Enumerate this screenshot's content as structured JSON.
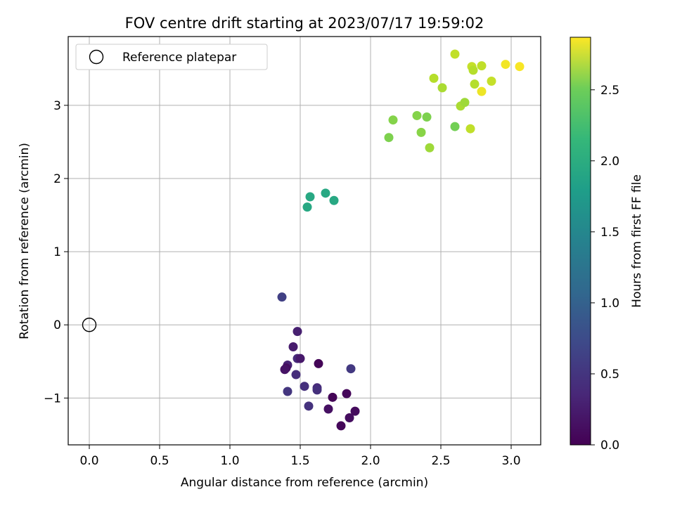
{
  "chart_data": {
    "type": "scatter",
    "title": "FOV centre drift starting at 2023/07/17 19:59:02",
    "xlabel": "Angular distance from reference (arcmin)",
    "ylabel": "Rotation from reference (arcmin)",
    "xlim": [
      -0.15,
      3.21
    ],
    "ylim": [
      -1.64,
      3.94
    ],
    "xticks": [
      0.0,
      0.5,
      1.0,
      1.5,
      2.0,
      2.5,
      3.0
    ],
    "xtick_labels": [
      "0.0",
      "0.5",
      "1.0",
      "1.5",
      "2.0",
      "2.5",
      "3.0"
    ],
    "yticks": [
      -1,
      0,
      1,
      2,
      3
    ],
    "ytick_labels": [
      "−1",
      "0",
      "1",
      "2",
      "3"
    ],
    "grid": true,
    "legend": {
      "placement": "top-left",
      "entries": [
        "Reference platepar"
      ]
    },
    "reference": {
      "x": 0.0,
      "y": 0.0,
      "label": "Reference platepar"
    },
    "colorbar": {
      "label": "Hours from first FF file",
      "colormap": "viridis",
      "range": [
        0.0,
        2.87
      ],
      "ticks": [
        0.0,
        0.5,
        1.0,
        1.5,
        2.0,
        2.5
      ],
      "tick_labels": [
        "0.0",
        "0.5",
        "1.0",
        "1.5",
        "2.0",
        "2.5"
      ]
    },
    "points": [
      {
        "x": 1.37,
        "y": 0.38,
        "c": 0.55
      },
      {
        "x": 1.48,
        "y": -0.09,
        "c": 0.25
      },
      {
        "x": 1.45,
        "y": -0.3,
        "c": 0.22
      },
      {
        "x": 1.48,
        "y": -0.46,
        "c": 0.35
      },
      {
        "x": 1.5,
        "y": -0.46,
        "c": 0.2
      },
      {
        "x": 1.41,
        "y": -0.55,
        "c": 0.28
      },
      {
        "x": 1.4,
        "y": -0.59,
        "c": 0.1
      },
      {
        "x": 1.39,
        "y": -0.61,
        "c": 0.15
      },
      {
        "x": 1.47,
        "y": -0.68,
        "c": 0.38
      },
      {
        "x": 1.63,
        "y": -0.53,
        "c": 0.03
      },
      {
        "x": 1.86,
        "y": -0.6,
        "c": 0.48
      },
      {
        "x": 1.53,
        "y": -0.84,
        "c": 0.4
      },
      {
        "x": 1.62,
        "y": -0.86,
        "c": 0.35
      },
      {
        "x": 1.62,
        "y": -0.89,
        "c": 0.4
      },
      {
        "x": 1.41,
        "y": -0.91,
        "c": 0.45
      },
      {
        "x": 1.83,
        "y": -0.94,
        "c": 0.05
      },
      {
        "x": 1.73,
        "y": -0.99,
        "c": 0.03
      },
      {
        "x": 1.56,
        "y": -1.11,
        "c": 0.42
      },
      {
        "x": 1.7,
        "y": -1.15,
        "c": 0.12
      },
      {
        "x": 1.89,
        "y": -1.18,
        "c": 0.08
      },
      {
        "x": 1.85,
        "y": -1.27,
        "c": 0.1
      },
      {
        "x": 1.79,
        "y": -1.38,
        "c": 0.05
      },
      {
        "x": 1.57,
        "y": 1.75,
        "c": 1.72
      },
      {
        "x": 1.55,
        "y": 1.61,
        "c": 1.72
      },
      {
        "x": 1.68,
        "y": 1.8,
        "c": 1.72
      },
      {
        "x": 1.74,
        "y": 1.7,
        "c": 1.72
      },
      {
        "x": 2.13,
        "y": 2.56,
        "c": 2.3
      },
      {
        "x": 2.16,
        "y": 2.8,
        "c": 2.33
      },
      {
        "x": 2.33,
        "y": 2.86,
        "c": 2.33
      },
      {
        "x": 2.4,
        "y": 2.84,
        "c": 2.3
      },
      {
        "x": 2.36,
        "y": 2.63,
        "c": 2.35
      },
      {
        "x": 2.42,
        "y": 2.42,
        "c": 2.45
      },
      {
        "x": 2.6,
        "y": 2.71,
        "c": 2.25
      },
      {
        "x": 2.45,
        "y": 3.37,
        "c": 2.55
      },
      {
        "x": 2.51,
        "y": 3.24,
        "c": 2.5
      },
      {
        "x": 2.6,
        "y": 3.7,
        "c": 2.6
      },
      {
        "x": 2.64,
        "y": 2.99,
        "c": 2.5
      },
      {
        "x": 2.67,
        "y": 3.04,
        "c": 2.45
      },
      {
        "x": 2.71,
        "y": 2.68,
        "c": 2.6
      },
      {
        "x": 2.72,
        "y": 3.53,
        "c": 2.62
      },
      {
        "x": 2.73,
        "y": 3.48,
        "c": 2.55
      },
      {
        "x": 2.74,
        "y": 3.29,
        "c": 2.55
      },
      {
        "x": 2.79,
        "y": 3.54,
        "c": 2.6
      },
      {
        "x": 2.79,
        "y": 3.19,
        "c": 2.8
      },
      {
        "x": 2.86,
        "y": 3.33,
        "c": 2.62
      },
      {
        "x": 2.96,
        "y": 3.56,
        "c": 2.82
      },
      {
        "x": 3.06,
        "y": 3.53,
        "c": 2.85
      }
    ]
  }
}
